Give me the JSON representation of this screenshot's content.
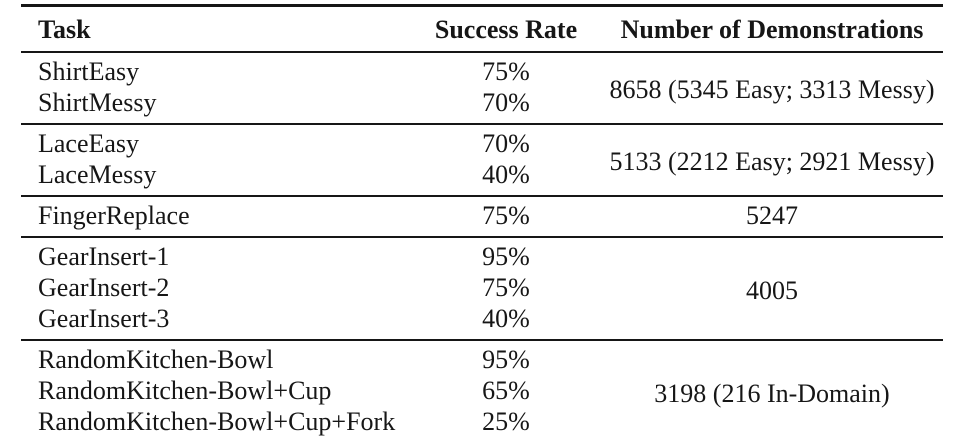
{
  "header": {
    "columns": [
      "Task",
      "Success Rate",
      "Number of Demonstrations"
    ]
  },
  "groups": [
    {
      "rows": [
        {
          "task": "ShirtEasy",
          "success_rate": "75%"
        },
        {
          "task": "ShirtMessy",
          "success_rate": "70%"
        }
      ],
      "demonstrations": "8658 (5345 Easy; 3313 Messy)"
    },
    {
      "rows": [
        {
          "task": "LaceEasy",
          "success_rate": "70%"
        },
        {
          "task": "LaceMessy",
          "success_rate": "40%"
        }
      ],
      "demonstrations": "5133 (2212 Easy; 2921 Messy)"
    },
    {
      "rows": [
        {
          "task": "FingerReplace",
          "success_rate": "75%"
        }
      ],
      "demonstrations": "5247"
    },
    {
      "rows": [
        {
          "task": "GearInsert-1",
          "success_rate": "95%"
        },
        {
          "task": "GearInsert-2",
          "success_rate": "75%"
        },
        {
          "task": "GearInsert-3",
          "success_rate": "40%"
        }
      ],
      "demonstrations": "4005"
    },
    {
      "rows": [
        {
          "task": "RandomKitchen-Bowl",
          "success_rate": "95%"
        },
        {
          "task": "RandomKitchen-Bowl+Cup",
          "success_rate": "65%"
        },
        {
          "task": "RandomKitchen-Bowl+Cup+Fork",
          "success_rate": "25%"
        }
      ],
      "demonstrations": "3198 (216 In-Domain)"
    }
  ],
  "colors": {
    "text": "#161616",
    "rule": "#161616",
    "background": "#ffffff"
  }
}
